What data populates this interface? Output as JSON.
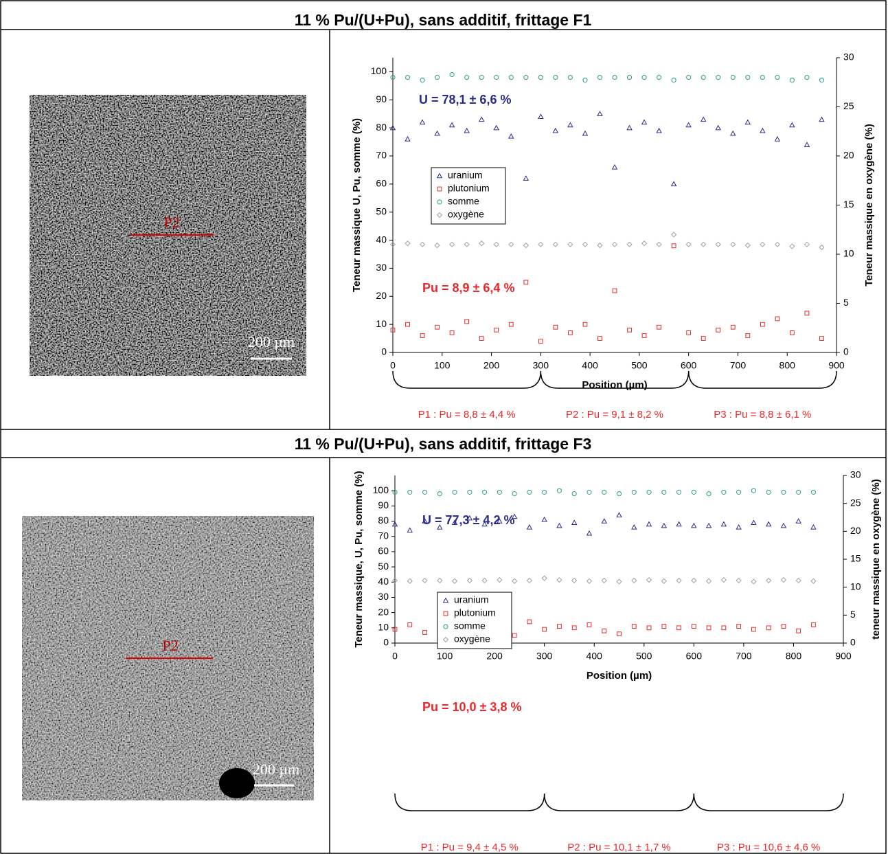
{
  "table": {
    "rows": [
      {
        "title": "11 % Pu/(U+Pu), sans additif, frittage F1",
        "image": {
          "profile_label": "P2",
          "scale_label": "200 µm"
        }
      },
      {
        "title": "11 % Pu/(U+Pu), sans additif, frittage F3",
        "image": {
          "profile_label": "P2",
          "scale_label": "200 µm"
        }
      }
    ]
  },
  "chart_data": [
    {
      "type": "scatter",
      "x_label": "Position (µm)",
      "y_label": "Teneur massique U, Pu, somme (%)",
      "y2_label": "Teneur massique en oxygène (%)",
      "xlim": [
        0,
        900
      ],
      "xticks": [
        0,
        100,
        200,
        300,
        400,
        500,
        600,
        700,
        800,
        900
      ],
      "ylim": [
        0,
        105
      ],
      "yticks": [
        0,
        10,
        20,
        30,
        40,
        50,
        60,
        70,
        80,
        90,
        100
      ],
      "y2lim": [
        0,
        30
      ],
      "y2ticks": [
        0,
        5,
        10,
        15,
        20,
        25,
        30
      ],
      "legend": "center-left",
      "annotations": [
        "U = 78,1 ± 6,6 %",
        "Pu = 8,9 ± 6,4 %"
      ],
      "segments": [
        "P1 : Pu = 8,8 ± 4,4 %",
        "P2 : Pu = 9,1 ± 8,2 %",
        "P3 : Pu = 8,8 ± 6,1 %"
      ],
      "x": [
        0,
        30,
        60,
        90,
        120,
        150,
        180,
        210,
        240,
        270,
        300,
        330,
        360,
        390,
        420,
        450,
        480,
        510,
        540,
        570,
        600,
        630,
        660,
        690,
        720,
        750,
        780,
        810,
        840,
        870
      ],
      "series": [
        {
          "name": "uranium",
          "color": "#2b2b8c",
          "marker": "triangle",
          "values": [
            80,
            76,
            82,
            78,
            81,
            79,
            83,
            80,
            77,
            62,
            84,
            79,
            81,
            78,
            85,
            66,
            80,
            82,
            79,
            60,
            81,
            83,
            80,
            78,
            82,
            79,
            76,
            81,
            74,
            83
          ]
        },
        {
          "name": "plutonium",
          "color": "#e8282a",
          "marker": "square",
          "values": [
            8,
            10,
            6,
            9,
            7,
            11,
            5,
            8,
            10,
            25,
            4,
            9,
            7,
            10,
            5,
            22,
            8,
            6,
            9,
            38,
            7,
            5,
            8,
            9,
            6,
            10,
            12,
            7,
            14,
            5
          ]
        },
        {
          "name": "somme",
          "color": "#2a9c8c",
          "marker": "circle",
          "values": [
            98,
            98,
            97,
            98,
            99,
            98,
            98,
            98,
            98,
            98,
            98,
            98,
            98,
            97,
            98,
            98,
            98,
            98,
            98,
            97,
            98,
            98,
            98,
            98,
            98,
            98,
            98,
            97,
            98,
            97
          ]
        },
        {
          "name": "oxygène",
          "color": "#a0a0a0",
          "marker": "diamond",
          "axis": "y2",
          "values": [
            11.0,
            11.1,
            11.0,
            10.9,
            11.0,
            11.0,
            11.1,
            11.0,
            11.0,
            10.9,
            11.0,
            11.0,
            11.0,
            11.0,
            10.9,
            11.0,
            11.0,
            11.1,
            11.0,
            12.0,
            11.0,
            11.0,
            11.0,
            11.0,
            10.9,
            11.0,
            11.0,
            10.8,
            11.0,
            10.7
          ]
        }
      ]
    },
    {
      "type": "scatter",
      "x_label": "Position (µm)",
      "y_label": "Teneur massique, U, Pu, somme (%)",
      "y2_label": "teneur massique en oxygène (%)",
      "xlim": [
        0,
        900
      ],
      "xticks": [
        0,
        100,
        200,
        300,
        400,
        500,
        600,
        700,
        800,
        900
      ],
      "ylim": [
        0,
        110
      ],
      "yticks": [
        0,
        10,
        20,
        30,
        40,
        50,
        60,
        70,
        80,
        90,
        100
      ],
      "y2lim": [
        0,
        30
      ],
      "y2ticks": [
        0,
        5,
        10,
        15,
        20,
        25,
        30
      ],
      "legend": "center-left",
      "annotations": [
        "U = 77,3 ± 4,2 %",
        "Pu = 10,0 ± 3,8 %"
      ],
      "segments": [
        "P1 : Pu = 9,4 ± 4,5 %",
        "P2 : Pu = 10,1 ± 1,7 %",
        "P3 : Pu = 10,6 ± 4,6 %"
      ],
      "x": [
        0,
        30,
        60,
        90,
        120,
        150,
        180,
        210,
        240,
        270,
        300,
        330,
        360,
        390,
        420,
        450,
        480,
        510,
        540,
        570,
        600,
        630,
        660,
        690,
        720,
        750,
        780,
        810,
        840
      ],
      "series": [
        {
          "name": "uranium",
          "color": "#2b2b8c",
          "marker": "triangle",
          "values": [
            78,
            74,
            80,
            76,
            79,
            82,
            78,
            80,
            83,
            76,
            81,
            77,
            79,
            72,
            80,
            84,
            76,
            78,
            77,
            78,
            77,
            77,
            78,
            76,
            79,
            78,
            77,
            80,
            76
          ]
        },
        {
          "name": "plutonium",
          "color": "#e8282a",
          "marker": "square",
          "values": [
            9,
            12,
            7,
            10,
            11,
            8,
            9,
            10,
            5,
            14,
            9,
            11,
            10,
            12,
            8,
            6,
            11,
            10,
            11,
            10,
            11,
            10,
            10,
            11,
            9,
            10,
            11,
            8,
            12
          ]
        },
        {
          "name": "somme",
          "color": "#2a9c8c",
          "marker": "circle",
          "values": [
            99,
            99,
            99,
            98,
            99,
            99,
            99,
            99,
            98,
            99,
            99,
            100,
            98,
            99,
            99,
            98,
            99,
            99,
            99,
            99,
            99,
            98,
            99,
            99,
            100,
            99,
            99,
            99,
            99
          ]
        },
        {
          "name": "oxygène",
          "color": "#a0a0a0",
          "marker": "diamond",
          "axis": "y2",
          "values": [
            11.2,
            11.1,
            11.2,
            11.2,
            11.1,
            11.2,
            11.2,
            11.3,
            11.1,
            11.2,
            11.6,
            11.3,
            11.2,
            11.1,
            11.2,
            11.0,
            11.2,
            11.3,
            11.1,
            11.2,
            11.2,
            11.1,
            11.3,
            11.2,
            11.0,
            11.2,
            11.3,
            11.2,
            11.1
          ]
        }
      ]
    }
  ]
}
